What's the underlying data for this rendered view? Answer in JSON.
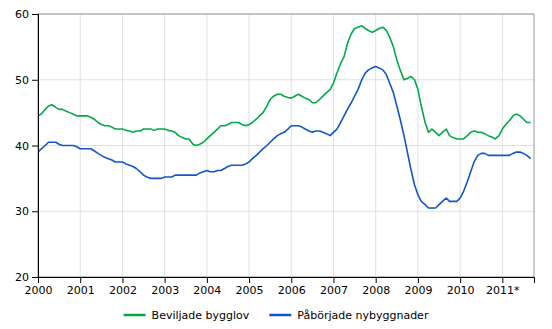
{
  "chart_data": {
    "type": "line",
    "x": [
      2000.0,
      2000.08,
      2000.17,
      2000.25,
      2000.33,
      2000.42,
      2000.5,
      2000.58,
      2000.67,
      2000.75,
      2000.83,
      2000.92,
      2001.0,
      2001.08,
      2001.17,
      2001.25,
      2001.33,
      2001.42,
      2001.5,
      2001.58,
      2001.67,
      2001.75,
      2001.83,
      2001.92,
      2002.0,
      2002.08,
      2002.17,
      2002.25,
      2002.33,
      2002.42,
      2002.5,
      2002.58,
      2002.67,
      2002.75,
      2002.83,
      2002.92,
      2003.0,
      2003.08,
      2003.17,
      2003.25,
      2003.33,
      2003.42,
      2003.5,
      2003.58,
      2003.67,
      2003.75,
      2003.83,
      2003.92,
      2004.0,
      2004.08,
      2004.17,
      2004.25,
      2004.33,
      2004.42,
      2004.5,
      2004.58,
      2004.67,
      2004.75,
      2004.83,
      2004.92,
      2005.0,
      2005.08,
      2005.17,
      2005.25,
      2005.33,
      2005.42,
      2005.5,
      2005.58,
      2005.67,
      2005.75,
      2005.83,
      2005.92,
      2006.0,
      2006.08,
      2006.17,
      2006.25,
      2006.33,
      2006.42,
      2006.5,
      2006.58,
      2006.67,
      2006.75,
      2006.83,
      2006.92,
      2007.0,
      2007.08,
      2007.17,
      2007.25,
      2007.33,
      2007.42,
      2007.5,
      2007.58,
      2007.67,
      2007.75,
      2007.83,
      2007.92,
      2008.0,
      2008.08,
      2008.17,
      2008.25,
      2008.33,
      2008.42,
      2008.5,
      2008.58,
      2008.67,
      2008.75,
      2008.83,
      2008.92,
      2009.0,
      2009.08,
      2009.17,
      2009.25,
      2009.33,
      2009.42,
      2009.5,
      2009.58,
      2009.67,
      2009.75,
      2009.83,
      2009.92,
      2010.0,
      2010.08,
      2010.17,
      2010.25,
      2010.33,
      2010.42,
      2010.5,
      2010.58,
      2010.67,
      2010.75,
      2010.83,
      2010.92,
      2011.0,
      2011.08,
      2011.17,
      2011.25,
      2011.33,
      2011.42,
      2011.5,
      2011.58,
      2011.67
    ],
    "series": [
      {
        "name": "Beviljade bygglov",
        "color": "#00aa44",
        "values": [
          44.5,
          44.8,
          45.5,
          46.0,
          46.2,
          45.8,
          45.5,
          45.5,
          45.2,
          45.0,
          44.8,
          44.5,
          44.5,
          44.5,
          44.5,
          44.3,
          44.0,
          43.5,
          43.2,
          43.0,
          43.0,
          42.8,
          42.5,
          42.5,
          42.5,
          42.3,
          42.2,
          42.0,
          42.2,
          42.2,
          42.5,
          42.5,
          42.5,
          42.3,
          42.5,
          42.5,
          42.5,
          42.3,
          42.2,
          42.0,
          41.5,
          41.2,
          41.0,
          41.0,
          40.2,
          40.0,
          40.2,
          40.5,
          41.0,
          41.5,
          42.0,
          42.5,
          43.0,
          43.0,
          43.2,
          43.5,
          43.5,
          43.5,
          43.2,
          43.0,
          43.2,
          43.5,
          44.0,
          44.5,
          45.0,
          46.0,
          47.0,
          47.5,
          47.8,
          47.8,
          47.5,
          47.3,
          47.2,
          47.5,
          47.8,
          47.5,
          47.2,
          47.0,
          46.5,
          46.5,
          47.0,
          47.5,
          48.0,
          48.5,
          49.5,
          51.0,
          52.5,
          53.5,
          55.5,
          57.0,
          57.8,
          58.0,
          58.2,
          57.8,
          57.5,
          57.2,
          57.5,
          57.8,
          58.0,
          57.5,
          56.5,
          55.0,
          53.0,
          51.5,
          50.0,
          50.2,
          50.5,
          50.0,
          48.5,
          46.0,
          43.5,
          42.0,
          42.5,
          42.0,
          41.5,
          42.0,
          42.5,
          41.5,
          41.2,
          41.0,
          41.0,
          41.0,
          41.5,
          42.0,
          42.2,
          42.0,
          42.0,
          41.8,
          41.5,
          41.3,
          41.0,
          41.5,
          42.5,
          43.2,
          43.8,
          44.5,
          44.8,
          44.5,
          44.0,
          43.5,
          43.5
        ]
      },
      {
        "name": "Påbörjade nybyggnader",
        "color": "#1155cc",
        "values": [
          39.0,
          39.5,
          40.0,
          40.5,
          40.5,
          40.5,
          40.2,
          40.0,
          40.0,
          40.0,
          40.0,
          39.8,
          39.5,
          39.5,
          39.5,
          39.5,
          39.2,
          38.8,
          38.5,
          38.2,
          38.0,
          37.8,
          37.5,
          37.5,
          37.5,
          37.2,
          37.0,
          36.8,
          36.5,
          36.0,
          35.5,
          35.2,
          35.0,
          35.0,
          35.0,
          35.0,
          35.2,
          35.2,
          35.2,
          35.5,
          35.5,
          35.5,
          35.5,
          35.5,
          35.5,
          35.5,
          35.8,
          36.0,
          36.2,
          36.0,
          36.0,
          36.2,
          36.2,
          36.5,
          36.8,
          37.0,
          37.0,
          37.0,
          37.0,
          37.2,
          37.5,
          38.0,
          38.5,
          39.0,
          39.5,
          40.0,
          40.5,
          41.0,
          41.5,
          41.8,
          42.0,
          42.5,
          43.0,
          43.0,
          43.0,
          42.8,
          42.5,
          42.2,
          42.0,
          42.2,
          42.2,
          42.0,
          41.8,
          41.5,
          42.0,
          42.5,
          43.5,
          44.5,
          45.5,
          46.5,
          47.5,
          48.5,
          50.0,
          51.0,
          51.5,
          51.8,
          52.0,
          51.8,
          51.5,
          50.8,
          49.5,
          48.0,
          46.0,
          44.0,
          41.5,
          39.0,
          36.5,
          34.0,
          32.5,
          31.5,
          31.0,
          30.5,
          30.5,
          30.5,
          31.0,
          31.5,
          32.0,
          31.5,
          31.5,
          31.5,
          32.0,
          33.0,
          34.5,
          36.0,
          37.5,
          38.5,
          38.8,
          38.8,
          38.5,
          38.5,
          38.5,
          38.5,
          38.5,
          38.5,
          38.5,
          38.8,
          39.0,
          39.0,
          38.8,
          38.5,
          38.0
        ]
      }
    ],
    "xlim": [
      2000,
      2011.75
    ],
    "xticks": [
      2000,
      2001,
      2002,
      2003,
      2004,
      2005,
      2006,
      2007,
      2008,
      2009,
      2010,
      {
        "value": 2011,
        "label": "2011*"
      }
    ],
    "ylim": [
      20,
      60
    ],
    "yticks": [
      20,
      30,
      40,
      50,
      60
    ],
    "grid": true,
    "legend": "bottom"
  }
}
